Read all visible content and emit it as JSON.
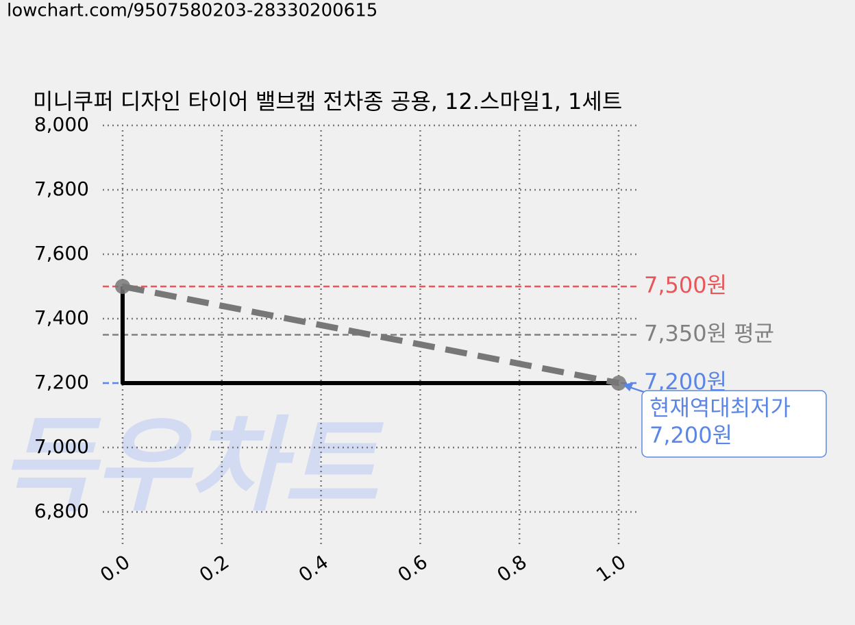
{
  "url": "lowchart.com/9507580203-28330200615",
  "chart_data": {
    "type": "line",
    "title": "미니쿠퍼 디자인 타이어 밸브캡 전차종 공용, 12.스마일1, 1세트",
    "watermark": "득우차트",
    "xlim": [
      -0.04,
      1.04
    ],
    "xticks": [
      {
        "value": 0,
        "label": "0.0"
      },
      0.2,
      0.4,
      0.6,
      0.8,
      {
        "value": 1,
        "label": "1.0"
      }
    ],
    "ylim": [
      6700,
      8000
    ],
    "yticks": [
      {
        "value": 6800,
        "label": "6,800"
      },
      {
        "value": 7000,
        "label": "7,000"
      },
      {
        "value": 7200,
        "label": "7,200"
      },
      {
        "value": 7400,
        "label": "7,400"
      },
      {
        "value": 7600,
        "label": "7,600"
      },
      {
        "value": 7800,
        "label": "7,800"
      },
      {
        "value": 8000,
        "label": "8,000"
      }
    ],
    "grid": true,
    "lines": [
      {
        "x": [
          0,
          0,
          1
        ],
        "values": [
          7500,
          7200,
          7200
        ],
        "color": "#000000",
        "style": "solid"
      },
      {
        "x": [
          0,
          1
        ],
        "values": [
          7500,
          7200
        ],
        "color": "#777777",
        "style": "dashed",
        "markers": true
      }
    ],
    "hlines": [
      {
        "value": 7500,
        "label": "7,500원",
        "color": "#e8565a"
      },
      {
        "value": 7350,
        "label": "7,350원 평균",
        "color": "#808080"
      },
      {
        "value": 7200,
        "label": "7,200원",
        "color": "#5b86e5"
      }
    ],
    "annotation": {
      "lines": [
        "현재역대최저가",
        "7,200원"
      ],
      "x": 1,
      "y": 7200,
      "color": "#5b86e5"
    }
  }
}
